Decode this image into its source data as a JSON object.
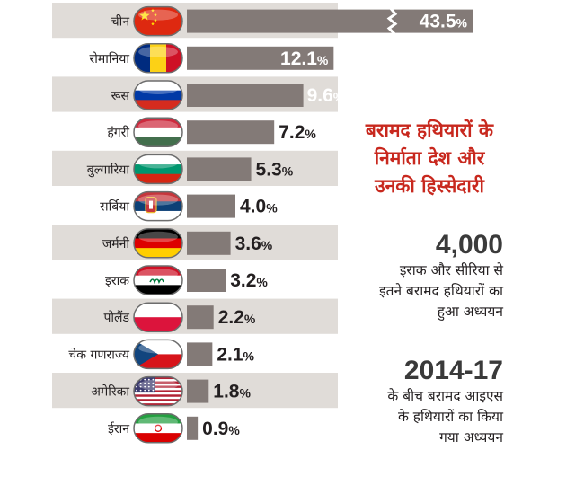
{
  "chart_data": {
    "type": "bar",
    "orientation": "horizontal",
    "categories": [
      "चीन",
      "रोमानिया",
      "रूस",
      "हंगरी",
      "बुल्गारिया",
      "सर्बिया",
      "जर्मनी",
      "इराक",
      "पोलैंड",
      "चेक गणराज्य",
      "अमेरिका",
      "ईरान"
    ],
    "values": [
      43.5,
      12.1,
      9.6,
      7.2,
      5.3,
      4.0,
      3.6,
      3.2,
      2.2,
      2.1,
      1.8,
      0.9
    ],
    "value_labels": [
      "43.5",
      "12.1",
      "9.6",
      "7.2",
      "5.3",
      "4.0",
      "3.6",
      "3.2",
      "2.2",
      "2.1",
      "1.8",
      "0.9"
    ],
    "unit": "%",
    "flag_icons": [
      "china-flag-icon",
      "romania-flag-icon",
      "russia-flag-icon",
      "hungary-flag-icon",
      "bulgaria-flag-icon",
      "serbia-flag-icon",
      "germany-flag-icon",
      "iraq-flag-icon",
      "poland-flag-icon",
      "czech-flag-icon",
      "usa-flag-icon",
      "iran-flag-icon"
    ],
    "axis_break_on_first_bar": true,
    "grid": false,
    "legend": "none",
    "colors": {
      "bar": "#837a77",
      "row_shade_dark": "#e0dcd8",
      "row_shade_light": "#ffffff",
      "title": "#c8281e",
      "text": "#231f20"
    }
  },
  "side_text": {
    "title_lines": [
      "बरामद हथियारों के",
      "निर्माता देश और",
      "उनकी हिस्सेदारी"
    ],
    "stat1": {
      "number": "4,000",
      "lines": [
        "इराक और सीरिया से",
        "इतने बरामद हथियारों का",
        "हुआ अध्ययन"
      ]
    },
    "stat2": {
      "number": "2014-17",
      "lines": [
        "के बीच बरामद आइएस",
        "के हथियारों का किया",
        "गया अध्ययन"
      ]
    }
  }
}
